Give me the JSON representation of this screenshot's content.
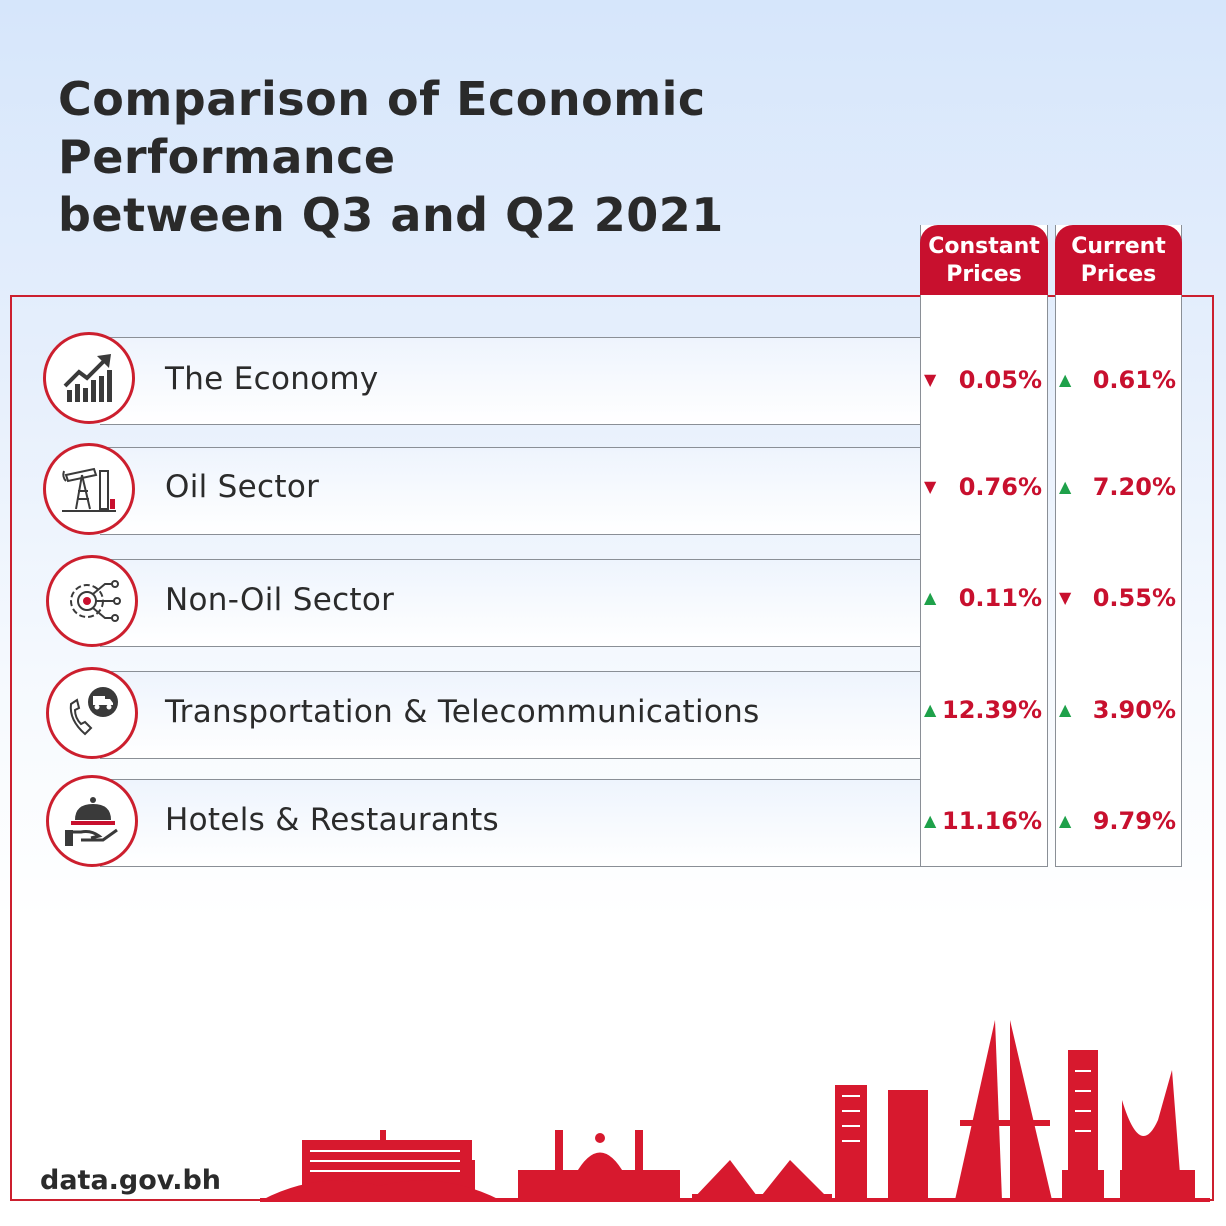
{
  "title_line1": "Comparison of Economic Performance",
  "title_line2": "between Q3 and Q2 2021",
  "columns": {
    "constant": [
      "Constant",
      "Prices"
    ],
    "current": [
      "Current",
      "Prices"
    ]
  },
  "colors": {
    "accent": "#c8102e",
    "up": "#1ea14a",
    "down": "#c8102e"
  },
  "chart_data": {
    "type": "table",
    "columns": [
      "Constant Prices",
      "Current Prices"
    ],
    "rows": [
      {
        "label": "The Economy",
        "icon": "growth-chart-icon",
        "constant": {
          "text": "0.05%",
          "value": -0.05,
          "direction": "down"
        },
        "current": {
          "text": "0.61%",
          "value": 0.61,
          "direction": "up"
        }
      },
      {
        "label": "Oil Sector",
        "icon": "oil-pump-icon",
        "constant": {
          "text": "0.76%",
          "value": -0.76,
          "direction": "down"
        },
        "current": {
          "text": "7.20%",
          "value": 7.2,
          "direction": "up"
        }
      },
      {
        "label": "Non-Oil Sector",
        "icon": "gear-circuit-icon",
        "constant": {
          "text": "0.11%",
          "value": 0.11,
          "direction": "up"
        },
        "current": {
          "text": "0.55%",
          "value": -0.55,
          "direction": "down"
        }
      },
      {
        "label": "Transportation & Telecommunications",
        "icon": "phone-truck-icon",
        "constant": {
          "text": "12.39%",
          "value": 12.39,
          "direction": "up"
        },
        "current": {
          "text": "3.90%",
          "value": 3.9,
          "direction": "up"
        }
      },
      {
        "label": "Hotels & Restaurants",
        "icon": "serving-cloche-icon",
        "constant": {
          "text": "11.16%",
          "value": 11.16,
          "direction": "up"
        },
        "current": {
          "text": "9.79%",
          "value": 9.79,
          "direction": "up"
        }
      }
    ]
  },
  "footer": "data.gov.bh"
}
